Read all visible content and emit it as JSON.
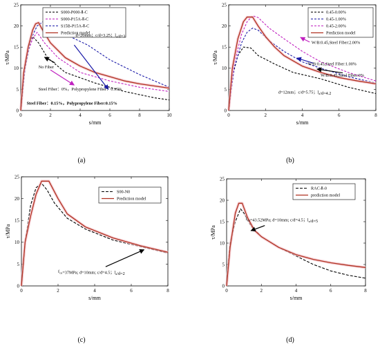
{
  "chart_data": [
    {
      "id": "a",
      "type": "line",
      "panel_label": "(a)",
      "xlabel": "s/mm",
      "ylabel": "τ/MPa",
      "xlim": [
        0,
        10
      ],
      "ylim": [
        0,
        25
      ],
      "xticks": [
        0,
        2,
        4,
        6,
        8,
        10
      ],
      "yticks": [
        0,
        5,
        10,
        15,
        20,
        25
      ],
      "legend_position": "top-center",
      "series": [
        {
          "name": "S000-P000-Ⅱ-C",
          "color": "#000000",
          "dash": "3,2",
          "x": [
            0,
            0.2,
            0.5,
            0.8,
            1.2,
            1.8,
            3,
            5,
            7,
            9,
            10
          ],
          "y": [
            0,
            8,
            15,
            17.5,
            16,
            12.5,
            9,
            6.5,
            4.5,
            3,
            2.5
          ]
        },
        {
          "name": "S000-P15A-Ⅱ-C",
          "color": "#c020c0",
          "dash": "3,2",
          "x": [
            0,
            0.2,
            0.5,
            0.8,
            1.1,
            1.6,
            2.5,
            4,
            6,
            8,
            10
          ],
          "y": [
            0,
            8,
            14,
            17,
            18.5,
            16,
            12.5,
            9,
            7,
            5.5,
            4.5
          ]
        },
        {
          "name": "S15B-P15A-Ⅱ-C",
          "color": "#1a1aa8",
          "dash": "3,2",
          "x": [
            0,
            0.3,
            0.7,
            1.1,
            1.5,
            2,
            3,
            4.5,
            6,
            8,
            10
          ],
          "y": [
            0,
            10,
            17,
            20,
            21,
            20,
            18,
            15.5,
            12,
            8.5,
            5.5
          ]
        },
        {
          "name": "Prediction model",
          "color": "#b03020",
          "dash": "",
          "x": [
            0,
            0.2,
            0.5,
            0.8,
            1.0,
            1.2,
            1.4,
            2,
            3,
            4,
            5,
            6,
            7,
            8,
            9,
            10
          ],
          "y": [
            0,
            9,
            15,
            19,
            20.5,
            20.8,
            19.5,
            16,
            12.5,
            10.5,
            9,
            8,
            7,
            6.3,
            5.8,
            5.3
          ]
        }
      ],
      "annotations": [
        {
          "text": "d=20mm；c/d=3.25；l",
          "sub": "a",
          "tail": "/d=3",
          "x": 3.7,
          "y": 17.5
        },
        {
          "text": "No Fiber",
          "x": 1.2,
          "y": 10
        },
        {
          "text": "Steel Fiber：0%，Polypropylene Fiber：0.15%",
          "x": 1.2,
          "y": 4.7,
          "color": "#c020c0"
        },
        {
          "text": "Steel Fiber：0.15%，Polypropylene Fiber:0.15%",
          "x": 0.4,
          "y": 1.4,
          "color": "#1a1aa8",
          "bold": true
        }
      ],
      "arrows": [
        {
          "from": [
            2.3,
            11.3
          ],
          "to": [
            1.6,
            12.6
          ],
          "color": "#000000"
        },
        {
          "from": [
            2.0,
            9.6
          ],
          "to": [
            3.6,
            6.0
          ],
          "color": "#c020c0"
        },
        {
          "from": [
            3.6,
            15.5
          ],
          "to": [
            5.9,
            5.0
          ],
          "color": "#1a1aa8"
        }
      ]
    },
    {
      "id": "b",
      "type": "line",
      "panel_label": "(b)",
      "xlabel": "s/mm",
      "ylabel": "τ/MPa",
      "xlim": [
        0,
        8
      ],
      "ylim": [
        0,
        25
      ],
      "xticks": [
        0,
        2,
        4,
        6,
        8
      ],
      "yticks": [
        0,
        5,
        10,
        15,
        20,
        25
      ],
      "legend_position": "top-right",
      "series": [
        {
          "name": "0.45-0.00%",
          "color": "#000000",
          "dash": "3,2",
          "x": [
            0,
            0.2,
            0.5,
            0.8,
            1.2,
            1.6,
            2.5,
            3.5,
            5,
            6.5,
            8
          ],
          "y": [
            0,
            8,
            13,
            15,
            14.8,
            13,
            11,
            9,
            7.5,
            5.5,
            4
          ]
        },
        {
          "name": "0.45-1.00%",
          "color": "#1a1aa8",
          "dash": "3,2",
          "x": [
            0,
            0.3,
            0.7,
            1.0,
            1.3,
            1.6,
            2.2,
            3,
            4,
            5,
            6.5,
            8
          ],
          "y": [
            0,
            10,
            16,
            18.5,
            19.5,
            19,
            16.5,
            14,
            11.5,
            10,
            8,
            6.5
          ]
        },
        {
          "name": "0.45-2.00%",
          "color": "#c020c0",
          "dash": "3,2",
          "x": [
            0,
            0.3,
            0.7,
            1.0,
            1.3,
            1.6,
            2.2,
            3,
            4,
            5,
            6.5,
            8
          ],
          "y": [
            0,
            11,
            18,
            21,
            22.4,
            22,
            19.5,
            17,
            14,
            11.5,
            9,
            7
          ]
        },
        {
          "name": "Prediction model",
          "color": "#b03020",
          "dash": "",
          "x": [
            0,
            0.2,
            0.5,
            0.8,
            1.0,
            1.3,
            1.6,
            2,
            2.5,
            3,
            4,
            5,
            6,
            7,
            8
          ],
          "y": [
            0,
            10,
            17,
            21,
            22.1,
            22.1,
            20,
            17.5,
            15,
            13,
            10.5,
            9,
            7.8,
            7,
            6.3
          ]
        }
      ],
      "annotations": [
        {
          "text": "W/B:0.45,Steel Fiber:2.00%",
          "x": 4.5,
          "y": 15.8,
          "color": "#c020c0"
        },
        {
          "text": "W/B:0.45,Steel Fiber:1.00%",
          "x": 4.3,
          "y": 10.7,
          "color": "#1a1aa8"
        },
        {
          "text": "W/B:0.45,Steel Fiber:0%",
          "x": 5.0,
          "y": 8.0
        },
        {
          "text": "d=12mm；c/d=5.75；l",
          "sub": "a",
          "tail": "/d=4.2",
          "x": 2.7,
          "y": 4.0
        }
      ],
      "arrows": [
        {
          "from": [
            4.4,
            16.2
          ],
          "to": [
            3.9,
            17.3
          ],
          "color": "#c020c0"
        },
        {
          "from": [
            4.6,
            11.2
          ],
          "to": [
            3.7,
            12.4
          ],
          "color": "#1a1aa8"
        },
        {
          "from": [
            6.2,
            8.9
          ],
          "to": [
            4.8,
            9.8
          ],
          "color": "#000000"
        }
      ]
    },
    {
      "id": "c",
      "type": "line",
      "panel_label": "(c)",
      "xlabel": "s/mm",
      "ylabel": "τ/MPa",
      "xlim": [
        0,
        8
      ],
      "ylim": [
        0,
        25
      ],
      "xticks": [
        0,
        2,
        4,
        6,
        8
      ],
      "yticks": [
        0,
        5,
        10,
        15,
        20,
        25
      ],
      "legend_position": "top-center",
      "series": [
        {
          "name": "S00-N0",
          "color": "#000000",
          "dash": "4,2",
          "x": [
            0,
            0.2,
            0.5,
            0.8,
            1.1,
            1.4,
            1.8,
            2.5,
            3.5,
            5,
            6.5,
            8
          ],
          "y": [
            0,
            10,
            18.5,
            22.5,
            23.5,
            22,
            19,
            15.5,
            13,
            10.5,
            9,
            7.5
          ]
        },
        {
          "name": "Prediction model",
          "color": "#b03020",
          "dash": "",
          "x": [
            0,
            0.2,
            0.5,
            0.8,
            1.1,
            1.5,
            2,
            2.5,
            3.5,
            5,
            6.5,
            8
          ],
          "y": [
            0,
            10,
            16,
            21,
            24,
            24,
            20,
            16.5,
            13.5,
            11,
            9.2,
            7.7
          ]
        }
      ],
      "annotations": [
        {
          "text": "f",
          "sub": "cu",
          "tail": "=37MPa; d=10mm; c/d=4.5；l",
          "sub2": "a",
          "tail2": "/d=2",
          "x": 2.0,
          "y": 3.0
        }
      ],
      "arrows": [
        {
          "from": [
            4.6,
            4.4
          ],
          "to": [
            6.7,
            8.3
          ],
          "color": "#000000"
        }
      ]
    },
    {
      "id": "d",
      "type": "line",
      "panel_label": "(d)",
      "xlabel": "s/mm",
      "ylabel": "τ/MPa",
      "xlim": [
        0,
        8
      ],
      "ylim": [
        0,
        25
      ],
      "xticks": [
        0,
        2,
        4,
        6,
        8
      ],
      "yticks": [
        0,
        5,
        10,
        15,
        20,
        25
      ],
      "legend_position": "top-center",
      "series": [
        {
          "name": "RAC-Ⅱ-0",
          "color": "#000000",
          "dash": "4,2",
          "x": [
            0,
            0.2,
            0.5,
            0.8,
            1.0,
            1.4,
            2,
            3,
            4,
            5,
            6,
            7,
            8
          ],
          "y": [
            0,
            10,
            15,
            18,
            17,
            14,
            11.5,
            9,
            7,
            5,
            3.5,
            2.5,
            1.8
          ]
        },
        {
          "name": "prediction model",
          "color": "#b03020",
          "dash": "",
          "x": [
            0,
            0.2,
            0.5,
            0.7,
            0.9,
            1.2,
            1.6,
            2,
            3,
            4,
            5,
            6,
            7,
            8
          ],
          "y": [
            0,
            9,
            17,
            19.3,
            19.3,
            16,
            13,
            11.5,
            9,
            7.3,
            6.2,
            5.4,
            4.8,
            4.3
          ]
        }
      ],
      "annotations": [
        {
          "text": "f",
          "sub": "cu",
          "tail": "=43.52MPa; d=10mm; c/d=4.5；l",
          "sub2": "a",
          "tail2": "/d=5",
          "x": 1.1,
          "y": 15.3
        }
      ],
      "arrows": [
        {
          "from": [
            2.2,
            14.1
          ],
          "to": [
            1.4,
            12.9
          ],
          "color": "#000000"
        }
      ]
    }
  ]
}
